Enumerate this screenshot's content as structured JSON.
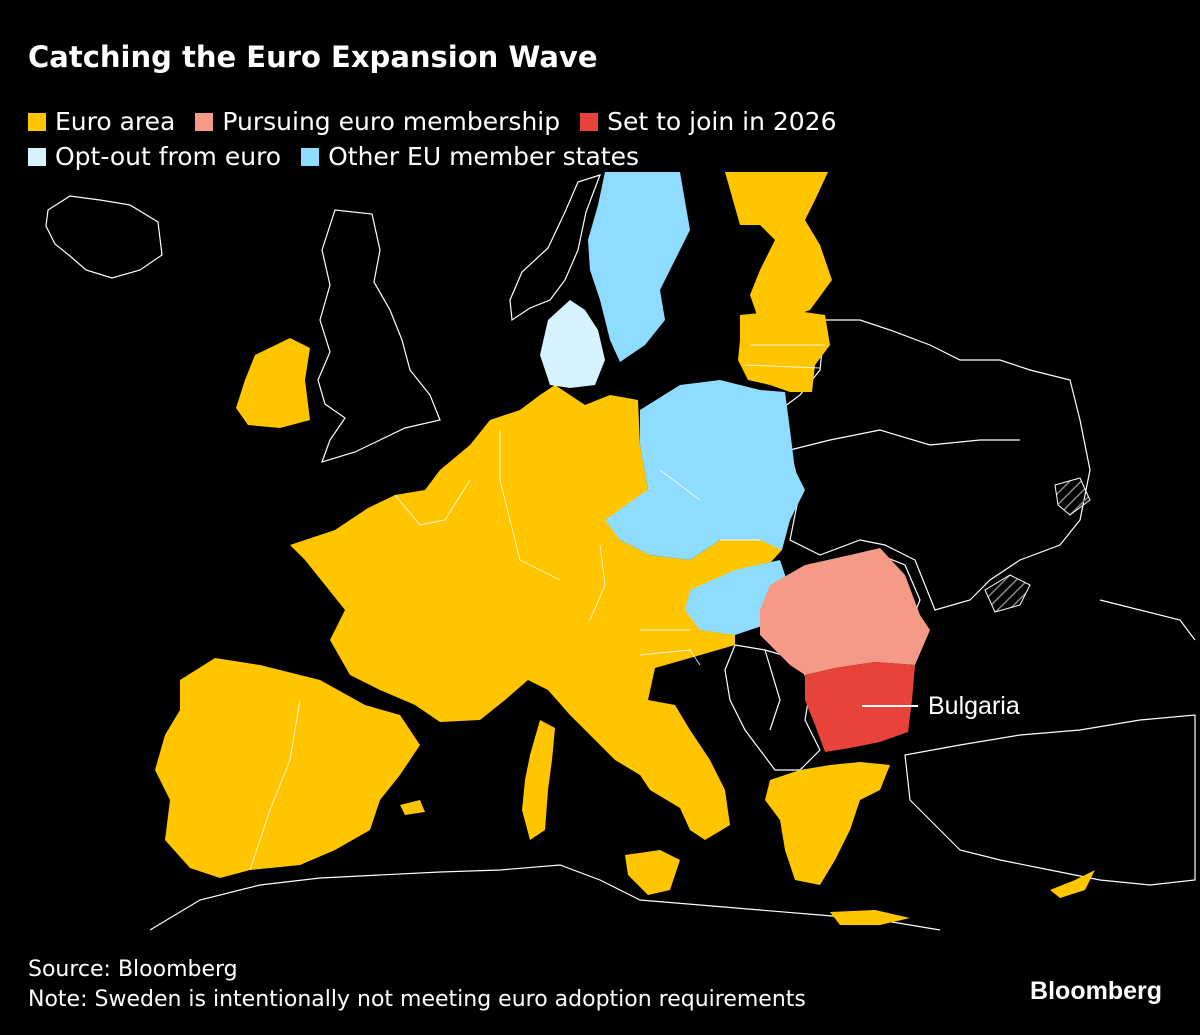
{
  "title": "Catching the Euro Expansion Wave",
  "legend": [
    {
      "label": "Euro area",
      "color": "#ffc600"
    },
    {
      "label": "Pursuing euro membership",
      "color": "#f59a86"
    },
    {
      "label": "Set to join in 2026",
      "color": "#e8433a"
    },
    {
      "label": "Opt-out from euro",
      "color": "#d7f3ff"
    },
    {
      "label": "Other EU member states",
      "color": "#8edcff"
    }
  ],
  "map": {
    "annotation": "Bulgaria",
    "colors": {
      "euro": "#ffc600",
      "pursuing": "#f59a86",
      "set_to_join": "#e8433a",
      "opt_out": "#d7f3ff",
      "other_eu": "#8edcff",
      "non_eu_border": "#ffffff",
      "background": "#000000"
    }
  },
  "source": "Source: Bloomberg",
  "note": "Note: Sweden is intentionally not meeting euro adoption requirements",
  "brand": "Bloomberg"
}
